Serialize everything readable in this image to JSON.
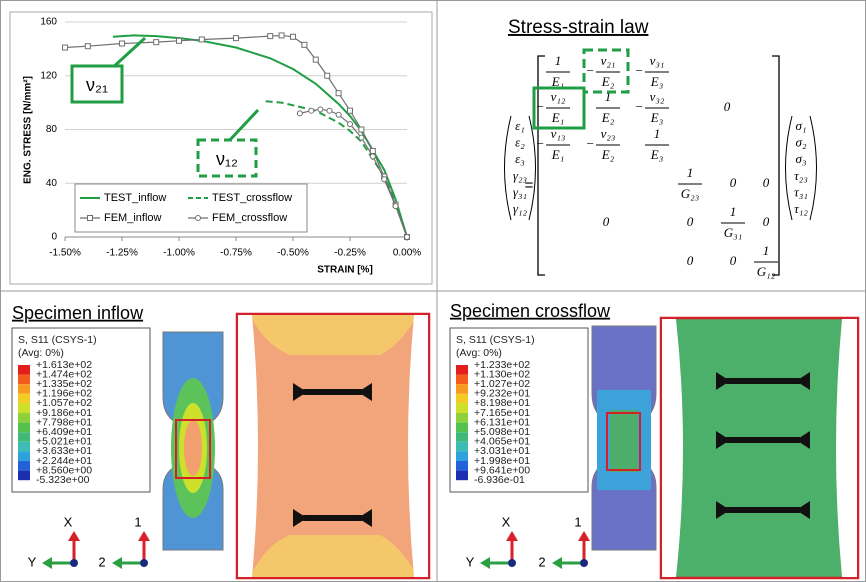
{
  "chart_data": {
    "type": "line",
    "y_label": "ENG. STRESS [N/mm²]",
    "x_label": "STRAIN [%]",
    "xlim": [
      -1.5,
      0
    ],
    "ylim": [
      0,
      160
    ],
    "xticks": [
      {
        "value": -1.5,
        "label": "-1.50%"
      },
      {
        "value": -1.25,
        "label": "-1.25%"
      },
      {
        "value": -1.0,
        "label": "-1.00%"
      },
      {
        "value": -0.75,
        "label": "-0.75%"
      },
      {
        "value": -0.5,
        "label": "-0.50%"
      },
      {
        "value": -0.25,
        "label": "-0.25%"
      },
      {
        "value": 0,
        "label": "0.00%"
      }
    ],
    "yticks": [
      0,
      40,
      80,
      120,
      160
    ],
    "grid": true,
    "legend": "lower-left",
    "series": [
      {
        "name": "TEST_inflow",
        "color": "#1f9e44",
        "line_style": "solid",
        "x": [
          -1.29,
          -1.2,
          -1.1,
          -1.0,
          -0.9,
          -0.75,
          -0.6,
          -0.5,
          -0.4,
          -0.3,
          -0.25,
          -0.2,
          -0.1,
          -0.05,
          0
        ],
        "values": [
          149,
          150,
          149.5,
          148,
          146,
          141,
          133,
          125,
          114,
          99,
          90,
          79,
          50,
          28,
          0
        ]
      },
      {
        "name": "TEST_crossflow",
        "color": "#1f9e44",
        "line_style": "dashed",
        "x": [
          -0.62,
          -0.55,
          -0.5,
          -0.4,
          -0.3,
          -0.25,
          -0.2,
          -0.1,
          -0.05,
          0
        ],
        "values": [
          101,
          100,
          98,
          94,
          85,
          79,
          71,
          45,
          26,
          0
        ]
      },
      {
        "name": "FEM_inflow",
        "color": "#707070",
        "line_style": "solid",
        "marker": "square",
        "x": [
          -1.5,
          -1.4,
          -1.25,
          -1.1,
          -1.0,
          -0.9,
          -0.75,
          -0.6,
          -0.55,
          -0.5,
          -0.45,
          -0.4,
          -0.35,
          -0.3,
          -0.25,
          -0.2,
          -0.15,
          -0.1,
          -0.05,
          0
        ],
        "values": [
          141,
          142,
          144,
          145,
          146,
          147,
          148,
          149.5,
          150,
          149,
          143,
          132,
          120,
          107,
          94,
          80,
          64,
          45,
          24,
          0
        ]
      },
      {
        "name": "FEM_crossflow",
        "color": "#707070",
        "line_style": "solid",
        "marker": "circle",
        "x": [
          -0.47,
          -0.42,
          -0.38,
          -0.34,
          -0.3,
          -0.25,
          -0.2,
          -0.15,
          -0.1,
          -0.05,
          0
        ],
        "values": [
          92,
          94,
          95,
          94,
          91,
          84,
          74,
          60,
          43,
          23,
          0
        ]
      }
    ],
    "annotations": [
      "ν₂₁",
      "ν₁₂"
    ]
  },
  "equation": {
    "title": "Stress-strain law",
    "strain": [
      "ε₁",
      "ε₂",
      "ε₃",
      "γ₂₃",
      "γ₃₁",
      "γ₁₂"
    ],
    "equals": "=",
    "stress": [
      "σ₁",
      "σ₂",
      "σ₃",
      "τ₂₃",
      "τ₃₁",
      "τ₁₂"
    ],
    "upper_block": [
      [
        {
          "num": "1",
          "den": "E₁"
        },
        {
          "sign": "−",
          "num": "ν₂₁",
          "den": "E₂"
        },
        {
          "sign": "−",
          "num": "ν₃₁",
          "den": "E₃"
        }
      ],
      [
        {
          "sign": "−",
          "num": "ν₁₂",
          "den": "E₁"
        },
        {
          "num": "1",
          "den": "E₂"
        },
        {
          "sign": "−",
          "num": "ν₃₂",
          "den": "E₃"
        }
      ],
      [
        {
          "sign": "−",
          "num": "ν₁₃",
          "den": "E₁"
        },
        {
          "sign": "−",
          "num": "ν₂₃",
          "den": "E₂"
        },
        {
          "num": "1",
          "den": "E₃"
        }
      ]
    ],
    "upper_right_zero": "0",
    "lower_left_zero": "0",
    "lower_block": [
      [
        {
          "num": "1",
          "den": "G₂₃"
        },
        "0",
        "0"
      ],
      [
        "0",
        {
          "num": "1",
          "den": "G₃₁"
        },
        "0"
      ],
      [
        "0",
        "0",
        {
          "num": "1",
          "den": "G₁₂"
        }
      ]
    ]
  },
  "contour_colors": [
    "#e41e1a",
    "#f25c1c",
    "#f79a1f",
    "#f2cc22",
    "#cde02a",
    "#8fd13c",
    "#52c24c",
    "#3fb878",
    "#3cbcb4",
    "#2ea2dc",
    "#2362d8",
    "#1b2fb0"
  ],
  "panels": [
    {
      "title": "Specimen inflow",
      "legend_title": "S, S11 (CSYS-1)",
      "legend_subtitle": "(Avg: 0%)",
      "legend_labels": [
        "+1.613e+02",
        "+1.474e+02",
        "+1.335e+02",
        "+1.196e+02",
        "+1.057e+02",
        "+9.186e+01",
        "+7.798e+01",
        "+6.409e+01",
        "+5.021e+01",
        "+3.633e+01",
        "+2.244e+01",
        "+8.560e+00",
        "-5.323e+00"
      ],
      "triads": [
        [
          "X",
          "Y"
        ],
        [
          "1",
          "2"
        ]
      ]
    },
    {
      "title": "Specimen crossflow",
      "legend_title": "S, S11 (CSYS-1)",
      "legend_subtitle": "(Avg: 0%)",
      "legend_labels": [
        "+1.233e+02",
        "+1.130e+02",
        "+1.027e+02",
        "+9.232e+01",
        "+8.198e+01",
        "+7.165e+01",
        "+6.131e+01",
        "+5.098e+01",
        "+4.065e+01",
        "+3.031e+01",
        "+1.998e+01",
        "+9.641e+00",
        "-6.936e-01"
      ],
      "triads": [
        [
          "X",
          "Y"
        ],
        [
          "1",
          "2"
        ]
      ]
    }
  ]
}
